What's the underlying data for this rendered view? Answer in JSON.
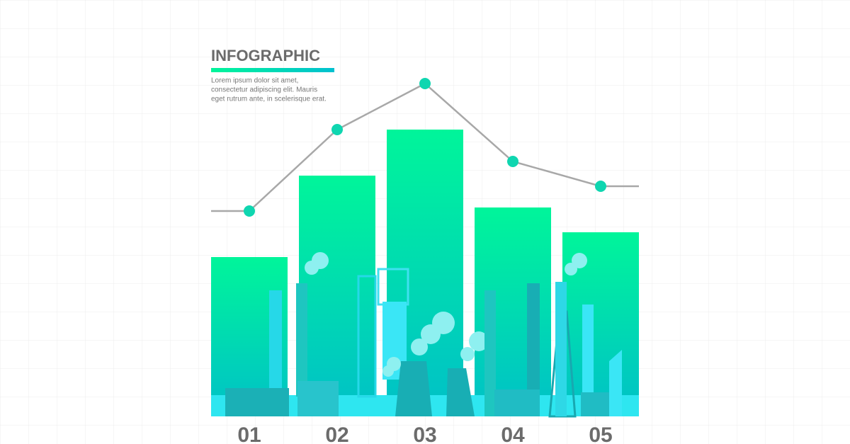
{
  "chart_data": {
    "type": "bar",
    "title": "INFOGRAPHIC",
    "description": [
      "Lorem ipsum dolor sit amet,",
      "consectetur adipiscing elit. Mauris",
      "eget rutrum ante, in scelerisque erat."
    ],
    "categories": [
      "01",
      "02",
      "03",
      "04",
      "05"
    ],
    "values": [
      225,
      340,
      405,
      295,
      260
    ],
    "line_values": [
      290,
      405,
      470,
      360,
      325
    ],
    "color": "#00f59a",
    "line_color": "#a8a8a8",
    "marker_color": "#0fd6b0",
    "ylim": [
      0,
      500
    ]
  }
}
